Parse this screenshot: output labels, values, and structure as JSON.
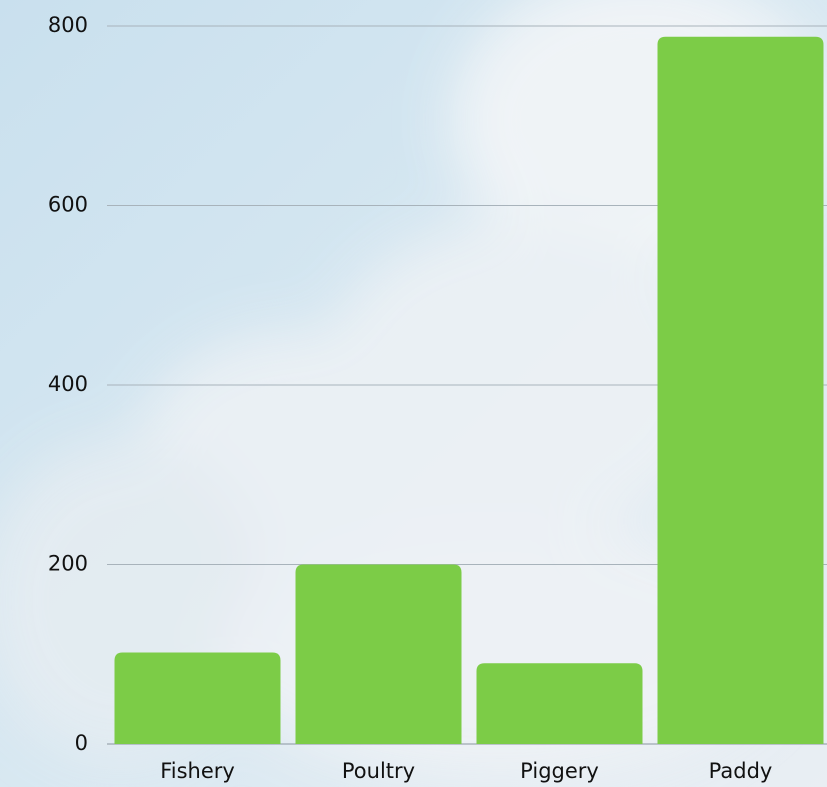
{
  "chart_data": {
    "type": "bar",
    "categories": [
      "Fishery",
      "Poultry",
      "Piggery",
      "Paddy"
    ],
    "values": [
      102,
      200,
      90,
      788
    ],
    "color": "#7ccc47",
    "ylim": [
      0,
      800
    ],
    "yticks": [
      0,
      200,
      400,
      600,
      800
    ],
    "grid": true
  }
}
